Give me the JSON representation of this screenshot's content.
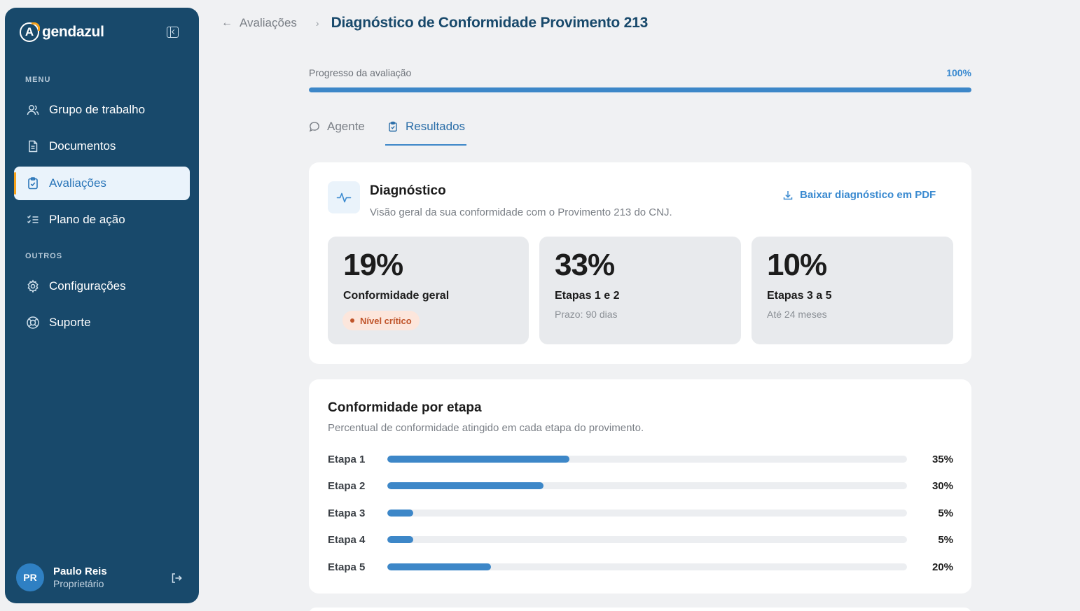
{
  "brand": {
    "logo_letter": "A",
    "logo_text": "gendazul"
  },
  "sidebar": {
    "menu_label": "MENU",
    "others_label": "OUTROS",
    "menu_items": [
      {
        "label": "Grupo de trabalho",
        "icon": "users-icon"
      },
      {
        "label": "Documentos",
        "icon": "document-icon"
      },
      {
        "label": "Avaliações",
        "icon": "clipboard-check-icon",
        "active": true
      },
      {
        "label": "Plano de ação",
        "icon": "list-checks-icon"
      }
    ],
    "other_items": [
      {
        "label": "Configurações",
        "icon": "gear-icon"
      },
      {
        "label": "Suporte",
        "icon": "lifebuoy-icon"
      }
    ],
    "user": {
      "initials": "PR",
      "name": "Paulo Reis",
      "role": "Proprietário"
    }
  },
  "header": {
    "back_label": "Avaliações",
    "title": "Diagnóstico de Conformidade Provimento 213"
  },
  "progress": {
    "label": "Progresso da avaliação",
    "value_text": "100%",
    "value": 100
  },
  "tabs": [
    {
      "label": "Agente",
      "icon": "chat-bubble-icon",
      "active": false
    },
    {
      "label": "Resultados",
      "icon": "clipboard-check-icon",
      "active": true
    }
  ],
  "diagnostico": {
    "title": "Diagnóstico",
    "subtitle": "Visão geral da sua conformidade com o Provimento 213 do CNJ.",
    "download_label": "Baixar diagnóstico em PDF",
    "stats": [
      {
        "value": "19%",
        "label": "Conformidade geral",
        "badge": "Nível crítico"
      },
      {
        "value": "33%",
        "label": "Etapas 1 e 2",
        "sub": "Prazo: 90 dias"
      },
      {
        "value": "10%",
        "label": "Etapas 3 a 5",
        "sub": "Até 24 meses"
      }
    ]
  },
  "etapas": {
    "title": "Conformidade por etapa",
    "subtitle": "Percentual de conformidade atingido em cada etapa do provimento.",
    "items": [
      {
        "name": "Etapa 1",
        "value": 35,
        "value_text": "35%"
      },
      {
        "name": "Etapa 2",
        "value": 30,
        "value_text": "30%"
      },
      {
        "name": "Etapa 3",
        "value": 5,
        "value_text": "5%"
      },
      {
        "name": "Etapa 4",
        "value": 5,
        "value_text": "5%"
      },
      {
        "name": "Etapa 5",
        "value": 20,
        "value_text": "20%"
      }
    ]
  },
  "colors": {
    "sidebar": "#18496b",
    "accent": "#3d87c8",
    "highlight": "#f6a11a",
    "critical": "#c0552b"
  }
}
